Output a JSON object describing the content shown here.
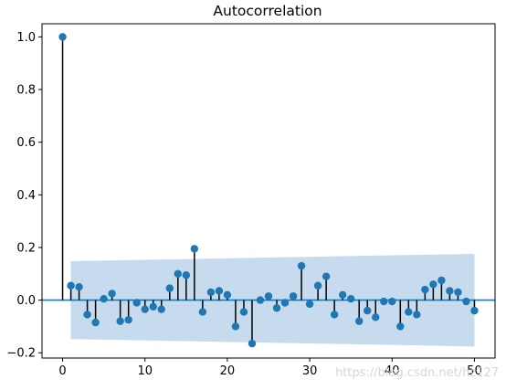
{
  "chart_data": {
    "type": "stem",
    "title": "Autocorrelation",
    "xlabel": "",
    "ylabel": "",
    "xlim": [
      -2.5,
      52.5
    ],
    "ylim": [
      -0.22,
      1.05
    ],
    "xticks": [
      0,
      10,
      20,
      30,
      40,
      50
    ],
    "yticks": [
      -0.2,
      0.0,
      0.2,
      0.4,
      0.6,
      0.8,
      1.0
    ],
    "ytick_labels": [
      "−0.2",
      "0.0",
      "0.2",
      "0.4",
      "0.6",
      "0.8",
      "1.0"
    ],
    "lags": [
      0,
      1,
      2,
      3,
      4,
      5,
      6,
      7,
      8,
      9,
      10,
      11,
      12,
      13,
      14,
      15,
      16,
      17,
      18,
      19,
      20,
      21,
      22,
      23,
      24,
      25,
      26,
      27,
      28,
      29,
      30,
      31,
      32,
      33,
      34,
      35,
      36,
      37,
      38,
      39,
      40,
      41,
      42,
      43,
      44,
      45,
      46,
      47,
      48,
      49,
      50
    ],
    "values": [
      1.0,
      0.055,
      0.05,
      -0.055,
      -0.085,
      0.005,
      0.025,
      -0.08,
      -0.075,
      -0.01,
      -0.035,
      -0.025,
      -0.035,
      0.045,
      0.1,
      0.095,
      0.195,
      -0.045,
      0.03,
      0.035,
      0.02,
      -0.1,
      -0.045,
      -0.165,
      0.0,
      0.015,
      -0.03,
      -0.01,
      0.015,
      0.13,
      -0.015,
      0.055,
      0.09,
      -0.055,
      0.02,
      0.005,
      -0.08,
      -0.04,
      -0.065,
      -0.005,
      -0.005,
      -0.1,
      -0.045,
      -0.055,
      0.04,
      0.06,
      0.075,
      0.035,
      0.03,
      -0.005,
      -0.04
    ],
    "confidence_band": {
      "x": [
        1,
        50
      ],
      "upper": [
        0.148,
        0.176
      ],
      "lower": [
        -0.148,
        -0.176
      ]
    },
    "zero_line": 0.0,
    "grid": false,
    "legend": "none",
    "colors": {
      "marker": "#1f77b4",
      "stem": "#000000",
      "band": "#c6dbed",
      "baseline": "#1f77b4"
    }
  },
  "watermark": "https://blog.csdn.net/hz127"
}
